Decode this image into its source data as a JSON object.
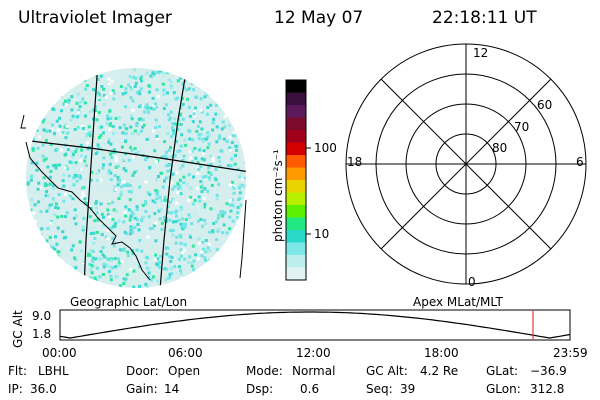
{
  "header": {
    "instrument": "Ultraviolet Imager",
    "date": "12 May 07",
    "time": "22:18:11 UT"
  },
  "image_panel": {
    "caption": "Geographic Lat/Lon"
  },
  "colorbar": {
    "label": "photon cm⁻²s⁻¹",
    "ticks": [
      "100",
      "10"
    ],
    "colors": [
      "#000000",
      "#3a0e3d",
      "#5b1a5a",
      "#7a0a2e",
      "#a1001a",
      "#d20000",
      "#ff5a00",
      "#ff9a00",
      "#e8d400",
      "#b6f000",
      "#5cf000",
      "#22e882",
      "#2ad8c8",
      "#7ee7e7",
      "#bdeeee",
      "#e0f2f2"
    ]
  },
  "polar": {
    "caption": "Apex MLat/MLT",
    "mlt_labels": {
      "top": "12",
      "left": "18",
      "right": "6",
      "bottom": "0"
    },
    "lat_labels": [
      "60",
      "70",
      "80"
    ]
  },
  "altitude_plot": {
    "ylabel": "GC Alt",
    "yticks": [
      "9.0",
      "1.8"
    ],
    "xticks": [
      "00:00",
      "06:00",
      "12:00",
      "18:00",
      "23:59"
    ],
    "marker_color": "#e04040"
  },
  "info": {
    "row1": [
      {
        "key": "Flt:",
        "value": "LBHL"
      },
      {
        "key": "Door:",
        "value": "Open"
      },
      {
        "key": "Mode:",
        "value": "Normal"
      },
      {
        "key": "GC Alt:",
        "value": "4.2 Re"
      },
      {
        "key": "GLat:",
        "value": "−36.9"
      }
    ],
    "row2": [
      {
        "key": "IP:",
        "value": "36.0"
      },
      {
        "key": "Gain:",
        "value": "14"
      },
      {
        "key": "Dsp:",
        "value": "0.6"
      },
      {
        "key": "Seq:",
        "value": "39"
      },
      {
        "key": "GLon:",
        "value": "312.8"
      }
    ]
  }
}
